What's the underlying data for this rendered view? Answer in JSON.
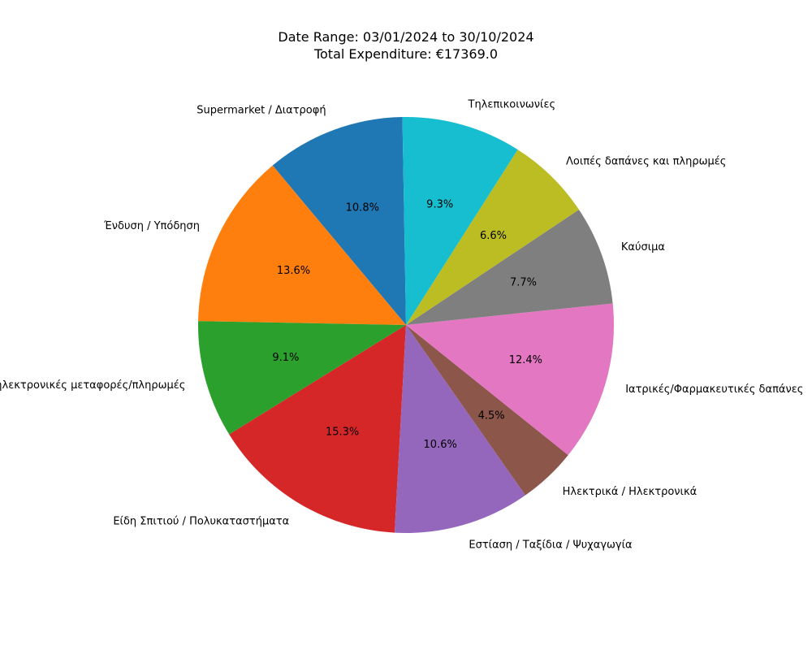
{
  "chart_data": {
    "type": "pie",
    "title_lines": [
      "Date Range: 03/01/2024 to 30/10/2024",
      "Total Expenditure: €17369.0"
    ],
    "start_angle_deg": 91,
    "direction": "counterclockwise",
    "slices": [
      {
        "label": "Supermarket / Διατροφή",
        "value": 10.8,
        "pct_label": "10.8%",
        "color": "#1f77b4"
      },
      {
        "label": "Ένδυση / Υπόδηση",
        "value": 13.6,
        "pct_label": "13.6%",
        "color": "#ff7f0e"
      },
      {
        "label": "Αφορά ηλεκτρονικές μεταφορές/πληρωμές",
        "value": 9.1,
        "pct_label": "9.1%",
        "color": "#2ca02c"
      },
      {
        "label": "Είδη Σπιτιού / Πολυκαταστήματα",
        "value": 15.3,
        "pct_label": "15.3%",
        "color": "#d62728"
      },
      {
        "label": "Εστίαση / Ταξίδια / Ψυχαγωγία",
        "value": 10.6,
        "pct_label": "10.6%",
        "color": "#9467bd"
      },
      {
        "label": "Ηλεκτρικά / Ηλεκτρονικά",
        "value": 4.5,
        "pct_label": "4.5%",
        "color": "#8c564b"
      },
      {
        "label": "Ιατρικές/Φαρμακευτικές δαπάνες",
        "value": 12.4,
        "pct_label": "12.4%",
        "color": "#e377c2"
      },
      {
        "label": "Καύσιμα",
        "value": 7.7,
        "pct_label": "7.7%",
        "color": "#7f7f7f"
      },
      {
        "label": "Λοιπές δαπάνες και πληρωμές",
        "value": 6.6,
        "pct_label": "6.6%",
        "color": "#bcbd22"
      },
      {
        "label": "Τηλεπικοινωνίες",
        "value": 9.3,
        "pct_label": "9.3%",
        "color": "#17becf"
      }
    ]
  }
}
